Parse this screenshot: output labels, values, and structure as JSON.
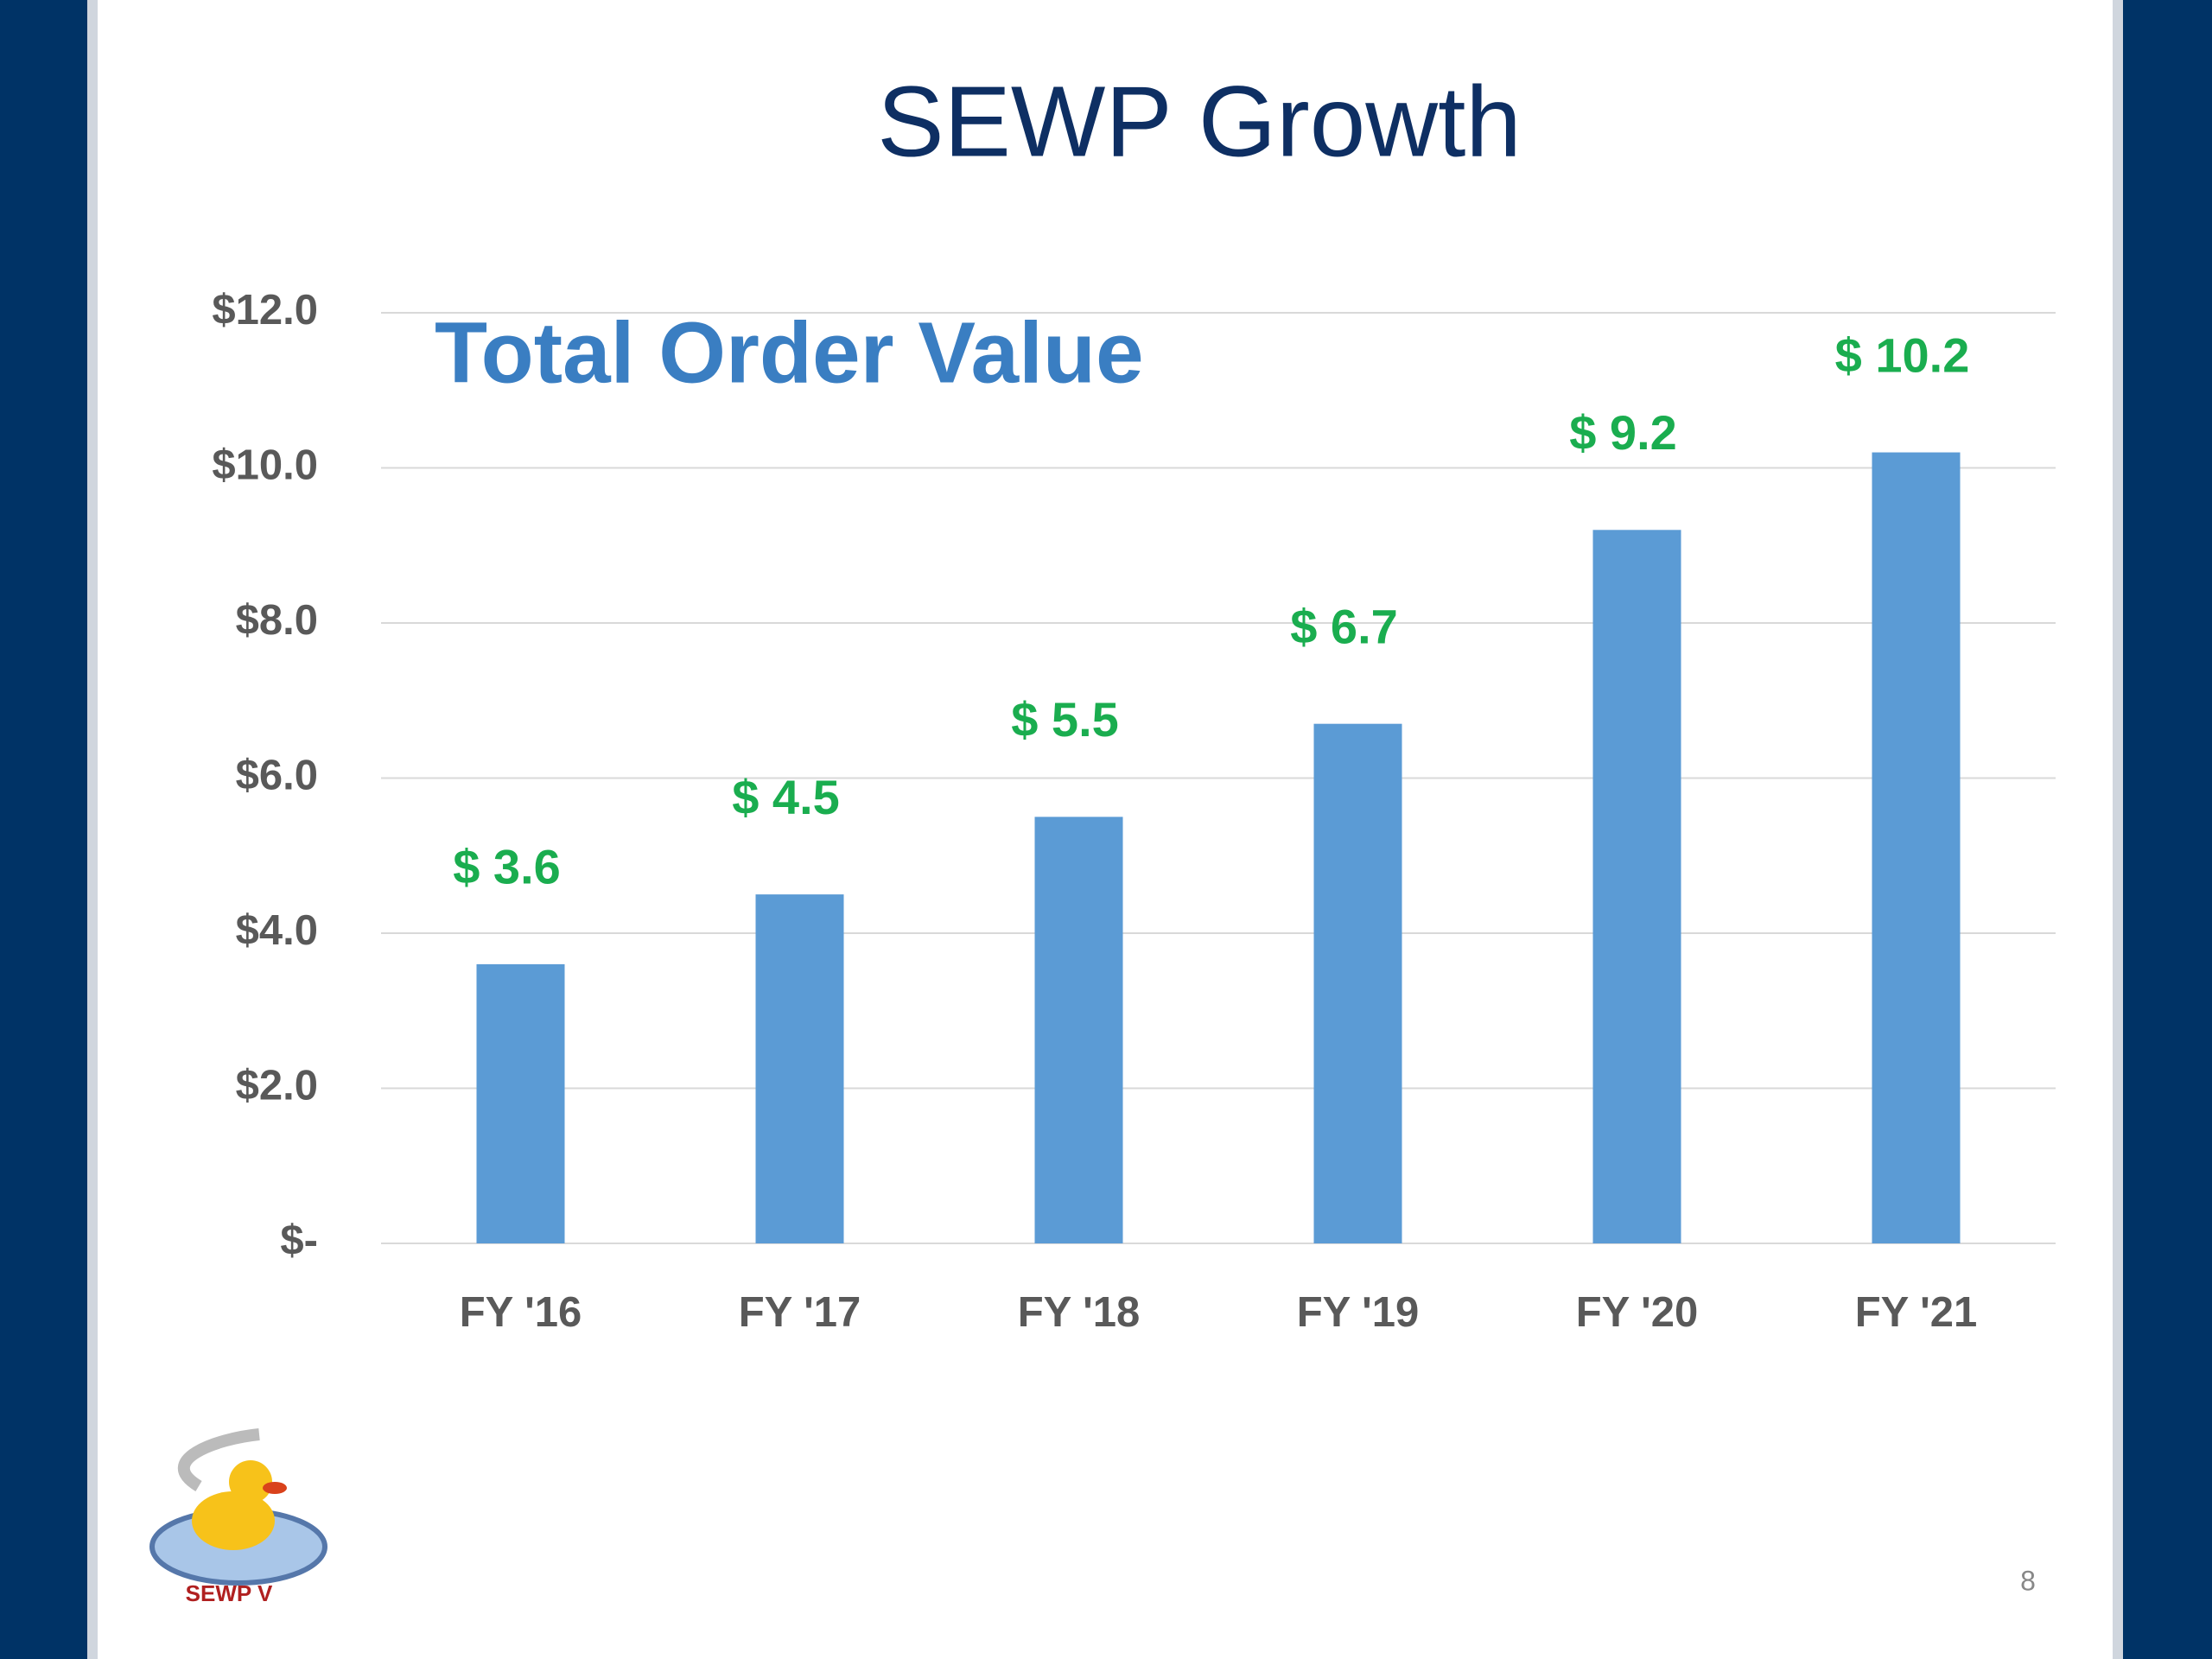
{
  "chart_data": {
    "type": "bar",
    "title": "SEWP Growth",
    "subtitle": "Total Order Value",
    "categories": [
      "FY '16",
      "FY '17",
      "FY '18",
      "FY '19",
      "FY '20",
      "FY '21"
    ],
    "values": [
      3.6,
      4.5,
      5.5,
      6.7,
      9.2,
      10.2
    ],
    "value_labels": [
      "$ 3.6",
      "$ 4.5",
      "$ 5.5",
      "$ 6.7",
      "$ 9.2",
      "$ 10.2"
    ],
    "color": "#5b9bd5",
    "label_color": "#1aad4f",
    "ylim": [
      0,
      12
    ],
    "yticks": [
      {
        "value": 0,
        "label": "$-"
      },
      {
        "value": 2,
        "label": "$2.0"
      },
      {
        "value": 4,
        "label": "$4.0"
      },
      {
        "value": 6,
        "label": "$6.0"
      },
      {
        "value": 8,
        "label": "$8.0"
      },
      {
        "value": 10,
        "label": "$10.0"
      },
      {
        "value": 12,
        "label": "$12.0"
      }
    ],
    "grid": true
  },
  "logo_text": "SEWP V",
  "page_number": "8"
}
